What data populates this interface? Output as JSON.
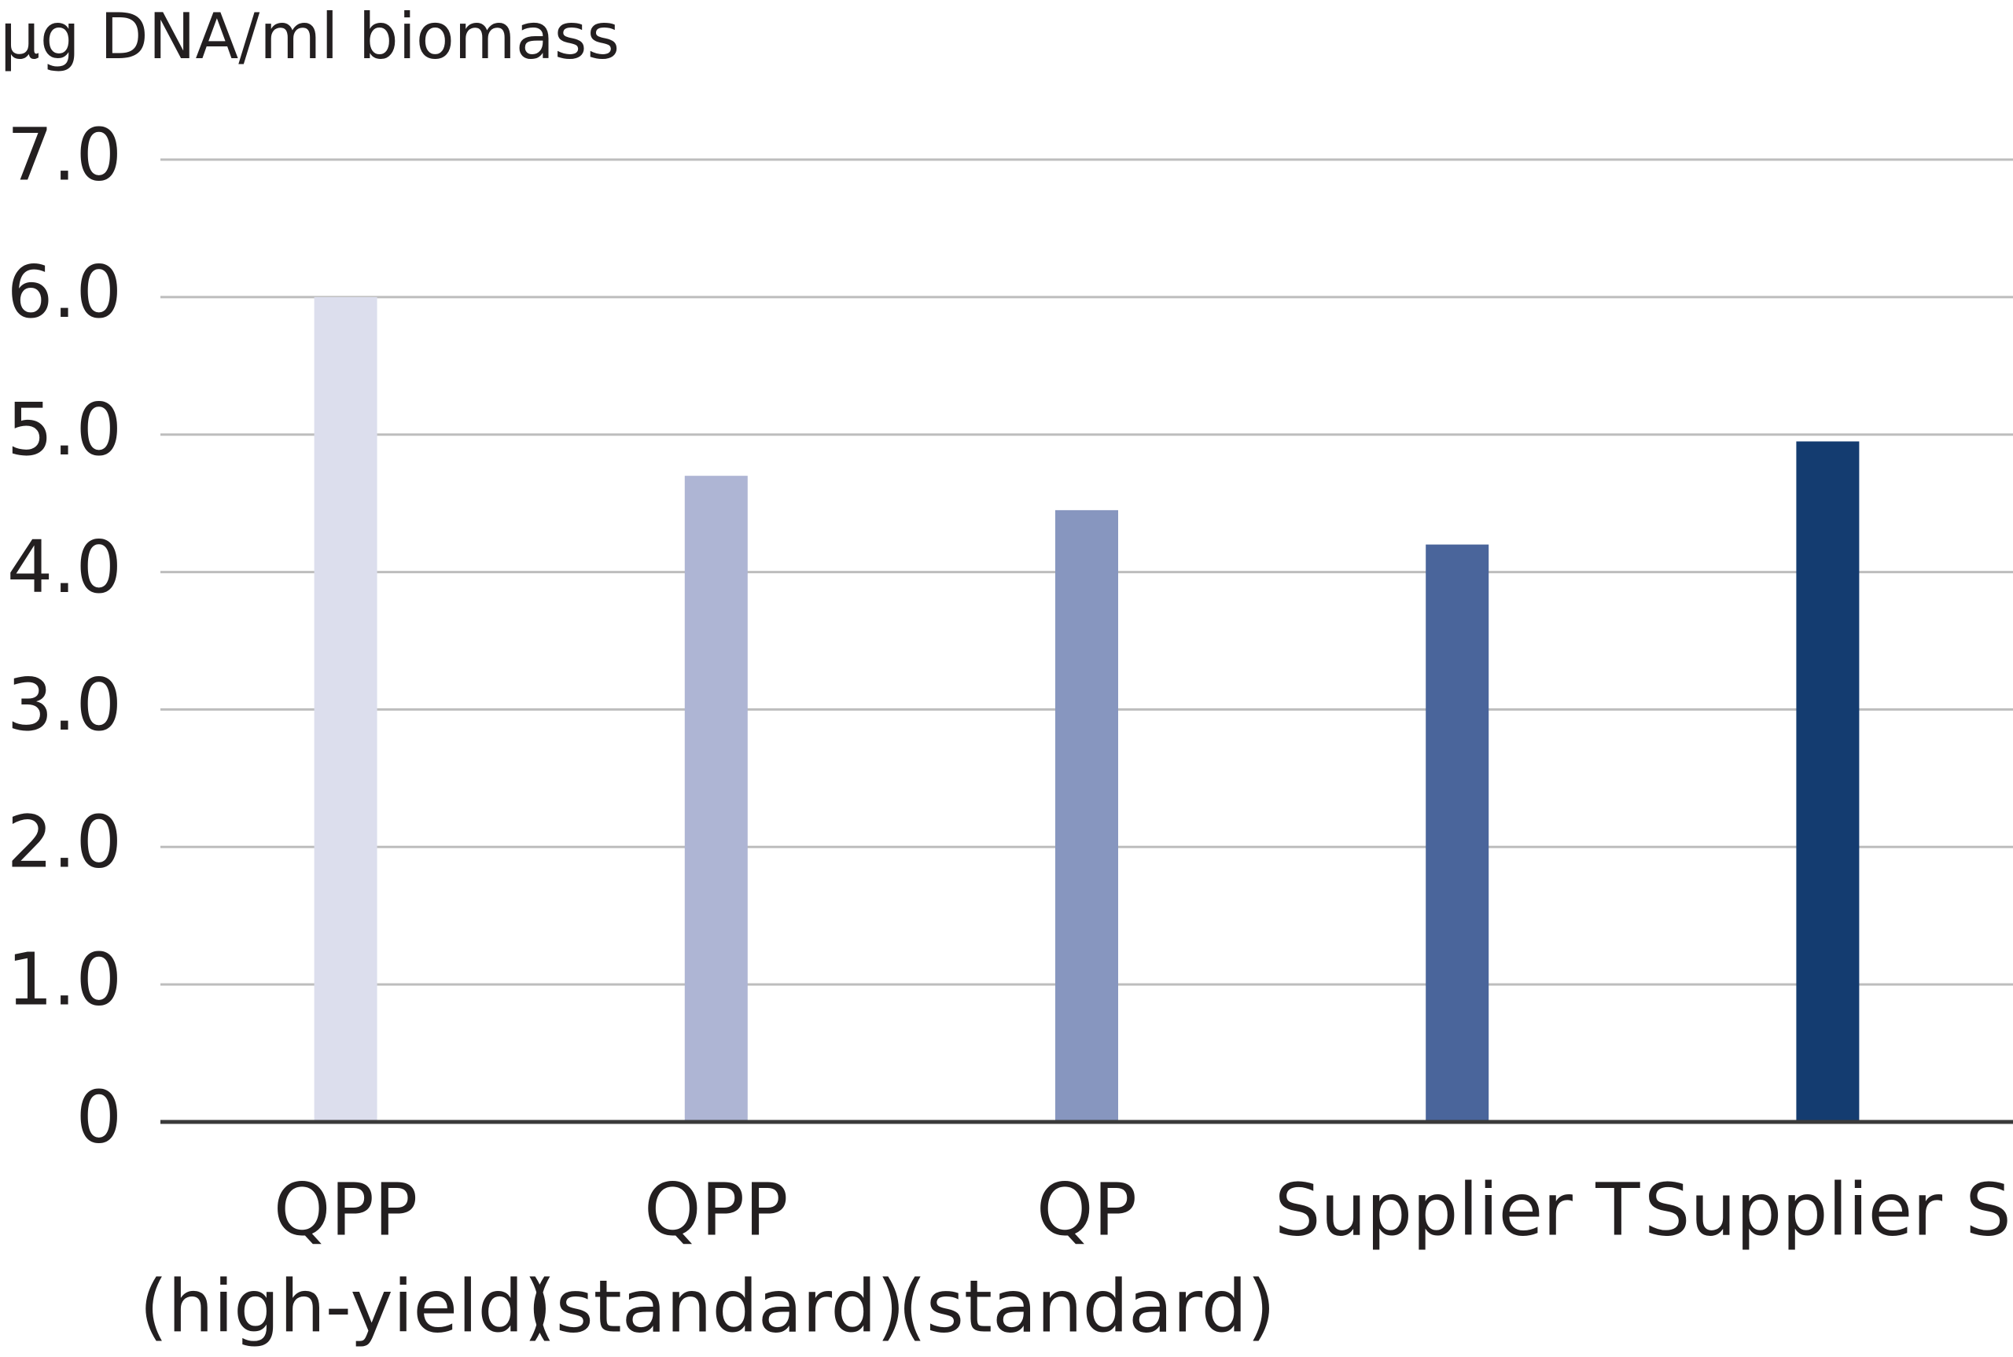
{
  "chart_data": {
    "type": "bar",
    "title": "µg DNA/ml biomass",
    "categories": [
      [
        "QPP",
        "(high-yield)"
      ],
      [
        "QPP",
        "(standard)"
      ],
      [
        "QP",
        "(standard)"
      ],
      [
        "Supplier T"
      ],
      [
        "Supplier S"
      ]
    ],
    "values": [
      6.0,
      4.7,
      4.45,
      4.2,
      4.95
    ],
    "colors": [
      "#dcdeed",
      "#aeb5d4",
      "#8796bf",
      "#4a659b",
      "#143c70"
    ],
    "ylim": [
      0,
      7
    ],
    "yticks": [
      0,
      {
        "value": 1,
        "label": "1.0"
      },
      {
        "value": 2,
        "label": "2.0"
      },
      {
        "value": 3,
        "label": "3.0"
      },
      {
        "value": 4,
        "label": "4.0"
      },
      {
        "value": 5,
        "label": "5.0"
      },
      {
        "value": 6,
        "label": "6.0"
      },
      {
        "value": 7,
        "label": "7.0"
      }
    ],
    "grid": true
  }
}
